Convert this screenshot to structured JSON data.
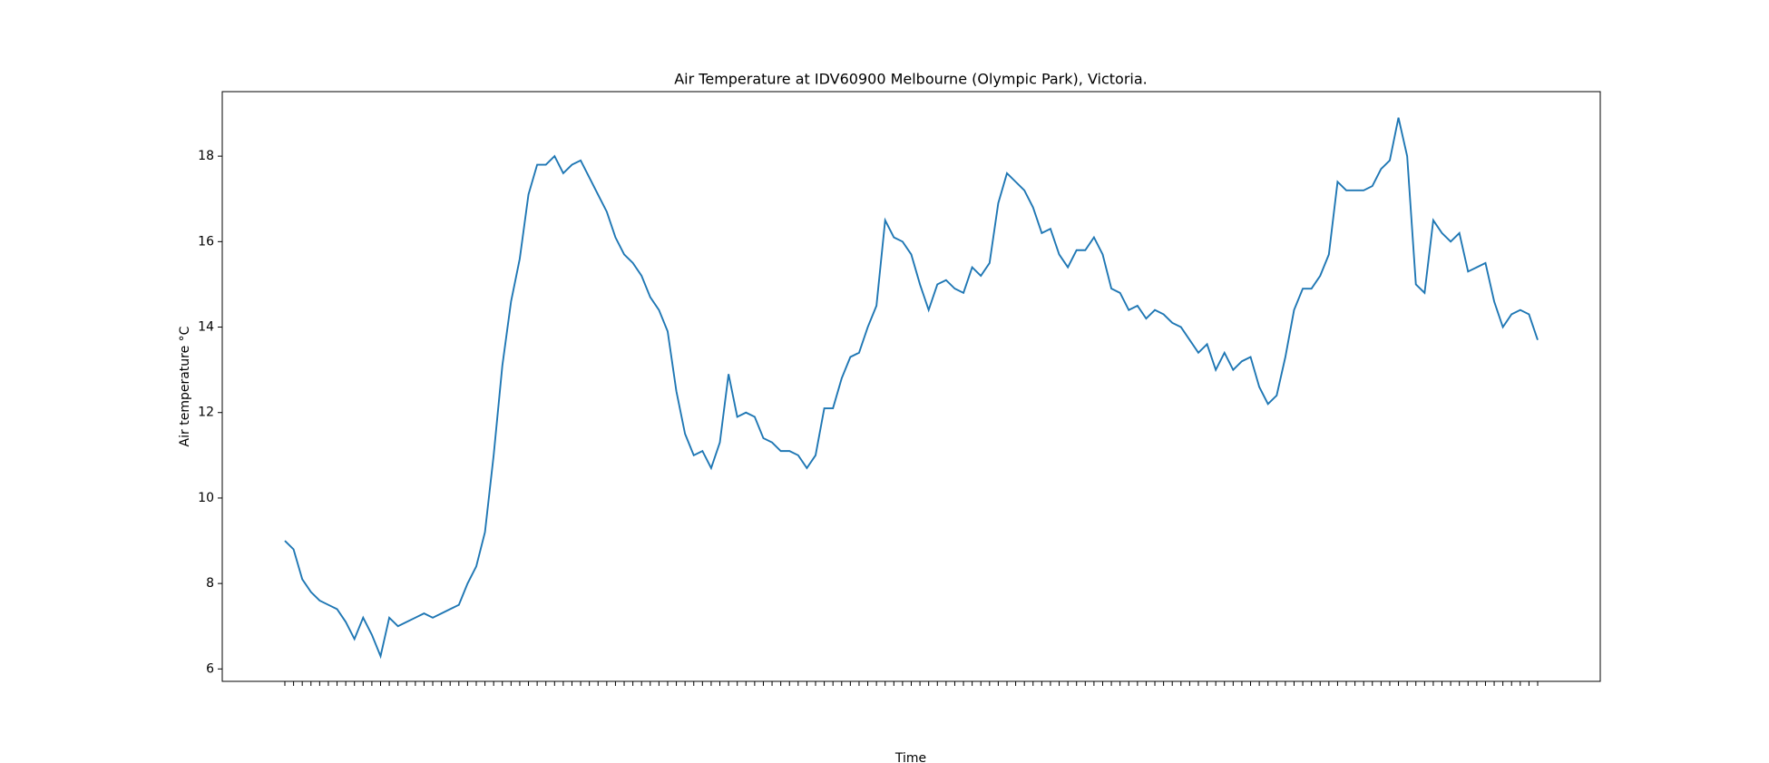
{
  "chart_data": {
    "type": "line",
    "title": "Air Temperature at IDV60900 Melbourne (Olympic Park), Victoria.",
    "xlabel": "Time",
    "ylabel": "Air temperature °C",
    "categories": [
      null,
      null,
      null,
      null,
      null,
      null,
      null,
      null,
      null,
      null,
      null,
      null,
      null,
      null,
      null,
      null,
      null,
      null,
      null,
      null,
      null,
      null,
      null,
      null,
      null,
      null,
      null,
      null,
      null,
      null,
      null,
      null,
      null,
      null,
      null,
      null,
      null,
      null,
      null,
      null,
      null,
      null,
      null,
      null,
      null,
      null,
      null,
      null,
      null,
      null,
      null,
      null,
      null,
      null,
      null,
      null,
      null,
      null,
      null,
      null,
      null,
      null,
      null,
      null,
      null,
      null,
      null,
      null,
      null,
      null,
      null,
      null,
      null,
      null,
      null,
      null,
      null,
      null,
      null,
      null,
      null,
      null,
      null,
      null,
      null,
      null,
      null,
      null,
      null,
      null,
      null,
      null,
      null,
      null,
      null,
      null,
      null,
      null,
      null,
      null,
      null,
      null,
      null,
      null,
      null,
      null,
      null,
      null,
      null,
      null,
      null,
      null,
      null,
      null,
      null,
      null,
      null,
      null,
      null,
      null,
      null,
      null,
      null,
      null,
      null,
      null,
      null,
      null,
      null,
      null,
      null,
      null,
      null,
      null,
      null,
      null,
      null,
      null,
      null,
      null,
      null,
      null,
      null,
      null,
      null
    ],
    "values": [
      9.0,
      8.8,
      8.1,
      7.8,
      7.6,
      7.5,
      7.4,
      7.1,
      6.7,
      7.2,
      6.8,
      6.3,
      7.2,
      7.0,
      7.1,
      7.2,
      7.3,
      7.2,
      7.3,
      7.4,
      7.5,
      8.0,
      8.4,
      9.2,
      11.0,
      13.1,
      14.6,
      15.6,
      17.1,
      17.8,
      17.8,
      18.0,
      17.6,
      17.8,
      17.9,
      17.5,
      17.1,
      16.7,
      16.1,
      15.7,
      15.5,
      15.2,
      14.7,
      14.4,
      13.9,
      12.5,
      11.5,
      11.0,
      11.1,
      10.7,
      11.3,
      12.9,
      11.9,
      12.0,
      11.9,
      11.4,
      11.3,
      11.1,
      11.1,
      11.0,
      10.7,
      11.0,
      12.1,
      12.1,
      12.8,
      13.3,
      13.4,
      14.0,
      14.5,
      16.5,
      16.1,
      16.0,
      15.7,
      15.0,
      14.4,
      15.0,
      15.1,
      14.9,
      14.8,
      15.4,
      15.2,
      15.5,
      16.9,
      17.6,
      17.4,
      17.2,
      16.8,
      16.2,
      16.3,
      15.7,
      15.4,
      15.8,
      15.8,
      16.1,
      15.7,
      14.9,
      14.8,
      14.4,
      14.5,
      14.2,
      14.4,
      14.3,
      14.1,
      14.0,
      13.7,
      13.4,
      13.6,
      13.0,
      13.4,
      13.0,
      13.2,
      13.3,
      12.6,
      12.2,
      12.4,
      13.3,
      14.4,
      14.9,
      14.9,
      15.2,
      15.7,
      17.4,
      17.2,
      17.2,
      17.2,
      17.3,
      17.7,
      17.9,
      18.9,
      18.0,
      15.0,
      14.8,
      16.5,
      16.2,
      16.0,
      16.2,
      15.3,
      15.4,
      15.5,
      14.6,
      14.0,
      14.3,
      14.4,
      14.3,
      13.7
    ],
    "color": "#1f77b4",
    "ylim": [
      5.71,
      19.51
    ],
    "yticks": [
      6,
      8,
      10,
      12,
      14,
      16,
      18
    ],
    "grid": false
  }
}
